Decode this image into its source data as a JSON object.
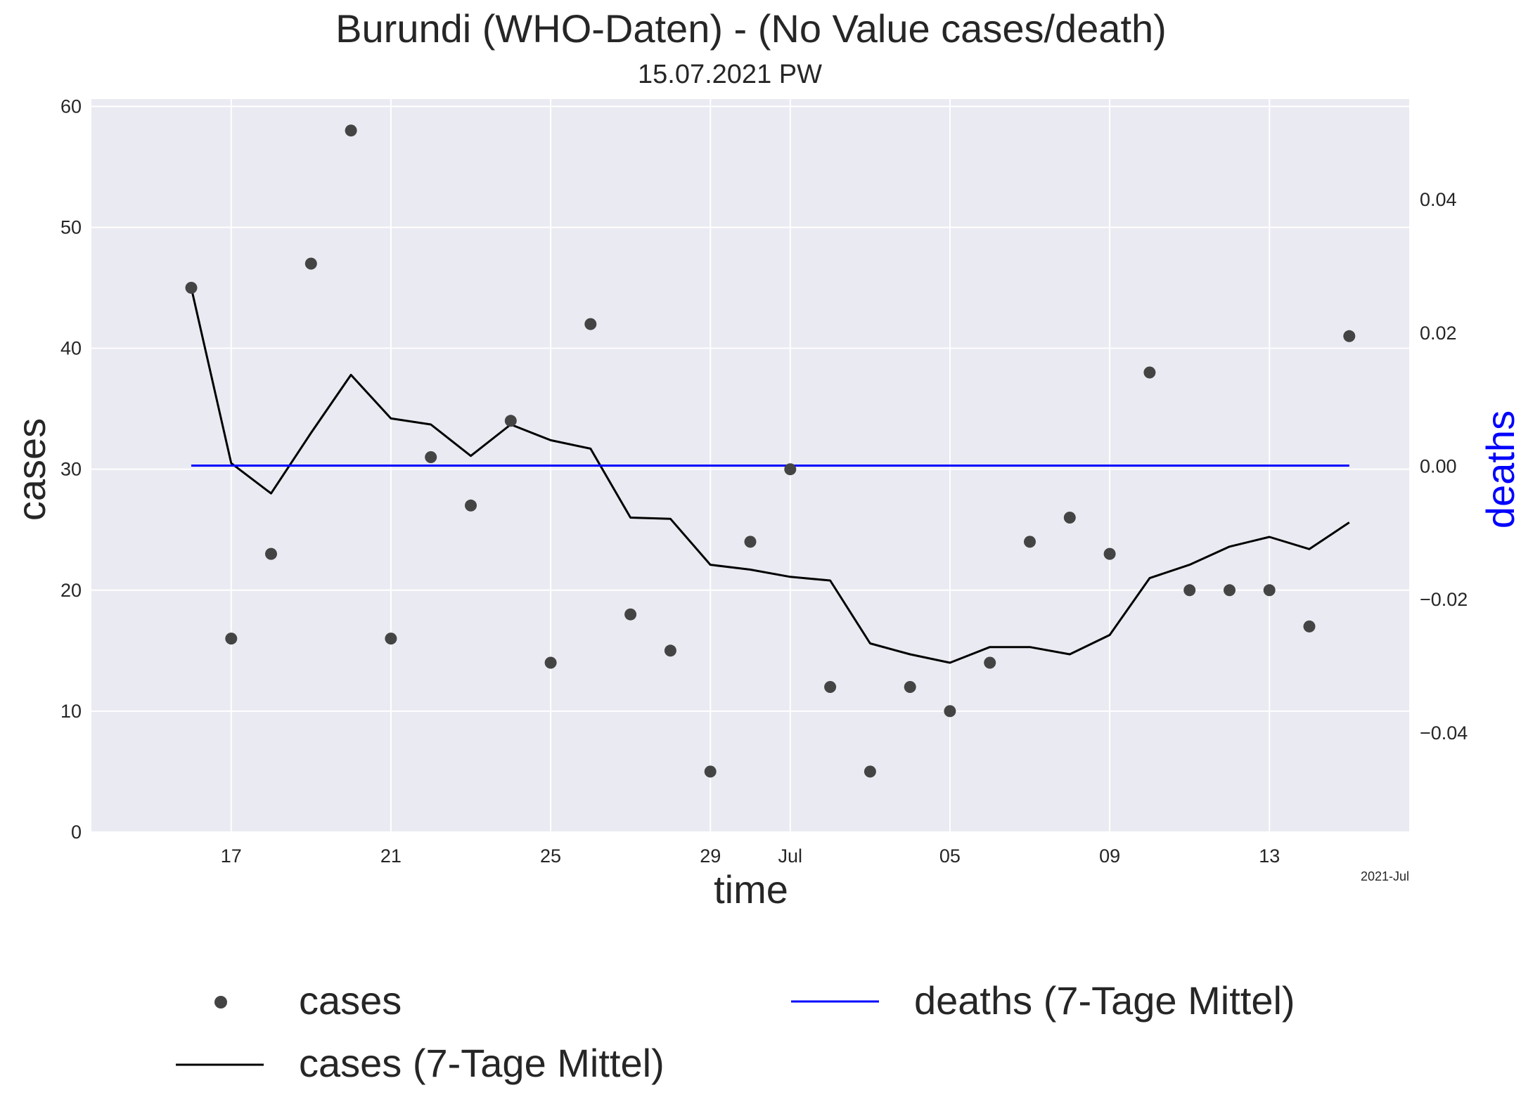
{
  "chart_data": {
    "type": "line",
    "title": "Burundi (WHO-Daten) - (No Value cases/death)",
    "subtitle": "15.07.2021 PW",
    "xlabel": "time",
    "ylabel": "cases",
    "y2label": "deaths",
    "x_offset_label": "2021-Jul",
    "x": [
      "2021-06-16",
      "2021-06-17",
      "2021-06-18",
      "2021-06-19",
      "2021-06-20",
      "2021-06-21",
      "2021-06-22",
      "2021-06-23",
      "2021-06-24",
      "2021-06-25",
      "2021-06-26",
      "2021-06-27",
      "2021-06-28",
      "2021-06-29",
      "2021-06-30",
      "2021-07-01",
      "2021-07-02",
      "2021-07-03",
      "2021-07-04",
      "2021-07-05",
      "2021-07-06",
      "2021-07-07",
      "2021-07-08",
      "2021-07-09",
      "2021-07-10",
      "2021-07-11",
      "2021-07-12",
      "2021-07-13",
      "2021-07-14",
      "2021-07-15"
    ],
    "x_tick_labels": [
      {
        "date": "2021-06-17",
        "label": "17"
      },
      {
        "date": "2021-06-21",
        "label": "21"
      },
      {
        "date": "2021-06-25",
        "label": "25"
      },
      {
        "date": "2021-06-29",
        "label": "29"
      },
      {
        "date": "2021-07-01",
        "label": "Jul"
      },
      {
        "date": "2021-07-05",
        "label": "05"
      },
      {
        "date": "2021-07-09",
        "label": "09"
      },
      {
        "date": "2021-07-13",
        "label": "13"
      }
    ],
    "xlim": [
      "2021-06-13.5",
      "2021-07-16.5"
    ],
    "ylim": [
      0,
      60.6
    ],
    "y_ticks": [
      0,
      10,
      20,
      30,
      40,
      50,
      60
    ],
    "y2lim": [
      -0.055,
      0.055
    ],
    "y2_ticks": [
      -0.04,
      -0.02,
      0.0,
      0.02,
      0.04
    ],
    "y2_tick_labels": [
      "−0.04",
      "−0.02",
      "0.00",
      "0.02",
      "0.04"
    ],
    "grid": true,
    "series": [
      {
        "name": "cases",
        "kind": "scatter",
        "axis": "left",
        "color": "#444444",
        "values": [
          45,
          16,
          23,
          47,
          58,
          16,
          31,
          27,
          34,
          14,
          42,
          18,
          15,
          5,
          24,
          30,
          12,
          5,
          12,
          10,
          14,
          24,
          26,
          23,
          38,
          20,
          20,
          20,
          17,
          41
        ]
      },
      {
        "name": "cases (7-Tage Mittel)",
        "kind": "line",
        "axis": "left",
        "color": "#000000",
        "values": [
          45,
          30.5,
          28.0,
          33.0,
          37.8,
          34.2,
          33.7,
          31.1,
          33.7,
          32.4,
          31.7,
          26.0,
          25.9,
          22.1,
          21.7,
          21.1,
          20.8,
          15.6,
          14.7,
          14.0,
          15.3,
          15.3,
          14.7,
          16.3,
          21.0,
          22.1,
          23.6,
          24.4,
          23.4,
          25.6
        ]
      },
      {
        "name": "deaths (7-Tage Mittel)",
        "kind": "line",
        "axis": "right",
        "color": "#0000ff",
        "values": [
          0,
          0,
          0,
          0,
          0,
          0,
          0,
          0,
          0,
          0,
          0,
          0,
          0,
          0,
          0,
          0,
          0,
          0,
          0,
          0,
          0,
          0,
          0,
          0,
          0,
          0,
          0,
          0,
          0,
          0
        ]
      }
    ],
    "legend_position": "bottom"
  },
  "colors": {
    "plot_background": "#eaeaf2",
    "grid": "#ffffff",
    "text": "#262626",
    "deaths_label": "#0000ff"
  }
}
